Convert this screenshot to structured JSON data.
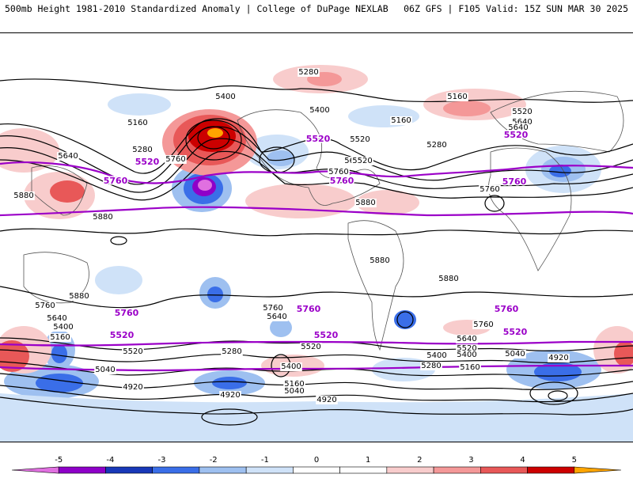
{
  "header": {
    "left": "500mb Height 1981-2010 Standardized Anomaly | College of DuPage NEXLAB",
    "right": "06Z GFS | F105 Valid: 15Z SUN MAR 30 2025"
  },
  "map": {
    "contour_labels": [
      "5280",
      "5400",
      "5160",
      "5520",
      "5640",
      "5160",
      "5400",
      "5520",
      "5640",
      "5160",
      "5280",
      "5640",
      "5880",
      "5880",
      "5760",
      "5760",
      "5640",
      "5880",
      "5880",
      "5880",
      "5880",
      "5760",
      "5640",
      "5400",
      "5160",
      "5520",
      "5040",
      "4920",
      "5280",
      "4920",
      "5160",
      "5040",
      "4920",
      "5760",
      "5640",
      "5400",
      "5520",
      "5400",
      "5280",
      "5760",
      "5640",
      "5520",
      "5400",
      "5160",
      "5040",
      "4920",
      "5520",
      "5280",
      "5640",
      "5760"
    ],
    "ref_labels": [
      "5520",
      "5520",
      "5520",
      "5760",
      "5760",
      "5760",
      "5760",
      "5760",
      "5760",
      "5520",
      "5520",
      "5520"
    ]
  },
  "colorbar": {
    "ticks": [
      "-5",
      "-4",
      "-3",
      "-2",
      "-1",
      "0",
      "1",
      "2",
      "3",
      "4",
      "5"
    ],
    "colors": [
      "#e070e0",
      "#8e00c8",
      "#1838b8",
      "#3a6ee8",
      "#9ec0f0",
      "#cfe2f8",
      "#ffffff",
      "#ffffff",
      "#f8cccc",
      "#f49898",
      "#e85858",
      "#cc0000",
      "#ffa500"
    ]
  }
}
